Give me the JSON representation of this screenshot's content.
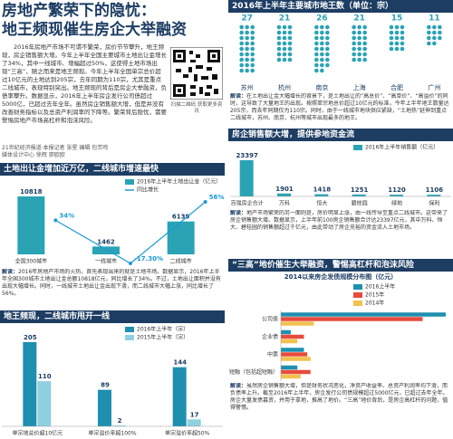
{
  "header": {
    "title_line1": "房地产繁荣下的隐忧：",
    "title_line2": "地王频现催生房企大举融资"
  },
  "intro": {
    "text": "2016年房地产市场不可谓不繁荣，房价节节攀升，地王频现，房企销售额大增。今年上半年全国主要城市土地出让金增长了34%，其中一线城市、增幅超过50%，这使得土地市场出现“三高”，随之而来是地王频现。今年上半年全国单宗总价超过10亿元的土地达到205宗，去年同期为110宗，尤其是重点二线城市，表现特别突出。地王频现的背后是房企大举融资，负债率攀升。数据显示，2016年上半年房企发行公司债超过5000亿，已超过去年全年。虽然房企销售额大增，但是并没有改善财务指标以及总资产利润率的下降等。繁荣背后隐忧，需要警惕房地产市场高杠杆和泡沫风险。",
    "qr_caption": "扫描二维码 获取更多资讯",
    "credits": [
      "21世纪经济报道·本报记者 张星 编辑 包芳鸣",
      "媒体设计中心 徐辉 廖欧欧"
    ]
  },
  "chart_data": [
    {
      "type": "pictogram",
      "title": "2016年上半年主要城市地王数（单位：宗）",
      "categories": [
        "苏州",
        "杭州",
        "南京",
        "上海",
        "合肥",
        "广州"
      ],
      "values": [
        27,
        21,
        26,
        21,
        15,
        11
      ],
      "color": "#2aa3b5",
      "note_label": "解读：",
      "note": "在土地出让金大幅增长的背景下，是土地出让的“高总价”、“高单价”、“高溢价”的同时，这导致了大量地王的出现。按照单宗地总价超过10亿元的标准，今年上半年地王数量达205宗，而去年同期仅为110宗。同时，由于一线城市地块供应紧缺，“土地热”延伸到重点二线城市，苏州、南京、杭州等城市出现最多的地王。"
    },
    {
      "type": "combo",
      "title": "土地出让金增加近万亿，二线城市增速最快",
      "categories": [
        "全国300城市",
        "一线城市",
        "二线城市"
      ],
      "series": [
        {
          "name": "2016年上半年土地出让金（亿元）",
          "kind": "bar",
          "color": "#2aa3b5",
          "values": [
            10818,
            1462,
            6139
          ]
        },
        {
          "name": "同比增长",
          "kind": "line",
          "axis": "y2",
          "color": "#1d9ad6",
          "values": [
            34,
            -17.3,
            56
          ],
          "value_labels": [
            "34%",
            "-17.30%",
            "56%"
          ]
        }
      ],
      "note_label": "解读：",
      "note": "2016年房地产市场的火热，首先表现出来的就是土地市场。数据显示，2016年上半年全国300城市土地出让金总额10818亿元，同比增长了34%。不过，土地出让面积并没有出现大幅增长。同时，一线城市土地出让金出现下滑，而二线城市大幅上涨，同比增长了56%。"
    },
    {
      "type": "bar",
      "title": "地王频现，二线城市甩开一线",
      "categories": [
        "单宗地总价超10亿元",
        "单宗溢价率超100%",
        "单宗溢价率超50%"
      ],
      "series": [
        {
          "name": "2016年上半年（宗）",
          "color": "#1f8fb0",
          "values": [
            205,
            89,
            144
          ]
        },
        {
          "name": "2015年上半年（宗）",
          "color": "#8fd0e0",
          "values": [
            110,
            2,
            17
          ]
        }
      ]
    },
    {
      "type": "bar",
      "title": "房企销售额大增，提供参地资金流",
      "categories": [
        "百强房企合计",
        "万科",
        "恒大",
        "碧桂园",
        "绿地",
        "保利"
      ],
      "series": [
        {
          "name": "2016年上半年销售额（亿元）",
          "color": "#2aa3b5",
          "values": [
            23397,
            1901,
            1418,
            1251,
            1120,
            1106
          ]
        }
      ],
      "note_label": "解读：",
      "note": "地产市场繁荣的另一面则是，房价明显上涨，由一线传导至重点二线城市。这带来了房企销售额大增。数据显示，上半年前100房企销售额合计达23397亿元，其中万科、恒大、碧桂园的销售额超过千亿元，由此带动了房企充裕的资金流入土地市场。"
    },
    {
      "type": "barh",
      "title": "“三高”地价催生大举融资，警惕高杠杆和泡沫风险",
      "subtitle": "2014以来房企发债规模分布图（亿元）",
      "categories": [
        "公司债",
        "企业债",
        "中票",
        "短融（包括超短融）"
      ],
      "series": [
        {
          "name": "2016上半年",
          "color": "#1f8fb0",
          "values": [
            5000,
            300,
            700,
            500
          ]
        },
        {
          "name": "2015年",
          "color": "#e74b3c",
          "values": [
            4300,
            700,
            800,
            900
          ]
        },
        {
          "name": "2014年",
          "color": "#f2c14e",
          "values": [
            1000,
            500,
            900,
            600
          ]
        }
      ],
      "note_label": "解读：",
      "note": "虽然房企销售额大增，但是财务状况恶化，净资产收益率、总资产利润率均下滑，而负债率上升。截至2016年上半年，房企发行公司债规模超过5000亿元，已超过去年全年。房企大量发债募资，并用于拿地，推高了地价。“三高”地价背后，是房企高杠杆的问题，值得警惕。"
    }
  ]
}
